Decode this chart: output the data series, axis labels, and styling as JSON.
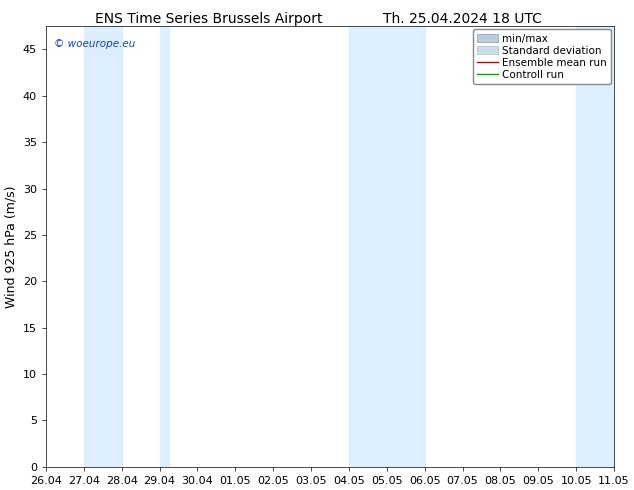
{
  "title_left": "ENS Time Series Brussels Airport",
  "title_right": "Th. 25.04.2024 18 UTC",
  "ylabel": "Wind 925 hPa (m/s)",
  "ylim": [
    0,
    47.5
  ],
  "yticks": [
    0,
    5,
    10,
    15,
    20,
    25,
    30,
    35,
    40,
    45
  ],
  "xlim_start": 0,
  "xlim_end": 30,
  "xtick_labels": [
    "26.04",
    "27.04",
    "28.04",
    "29.04",
    "30.04",
    "01.05",
    "02.05",
    "03.05",
    "04.05",
    "05.05",
    "06.05",
    "07.05",
    "08.05",
    "09.05",
    "10.05",
    "11.05"
  ],
  "xtick_positions": [
    0,
    2,
    4,
    6,
    8,
    10,
    12,
    14,
    16,
    18,
    20,
    22,
    24,
    26,
    28,
    30
  ],
  "shaded_bands": [
    [
      2,
      4
    ],
    [
      6,
      6.5
    ],
    [
      16,
      20
    ],
    [
      28,
      30
    ]
  ],
  "shade_color": "#ddeeff",
  "background_color": "#ffffff",
  "watermark": "© woeurope.eu",
  "watermark_color": "#1144cc",
  "legend_items": [
    {
      "label": "min/max",
      "color": "#b8cfe0",
      "type": "errorbar"
    },
    {
      "label": "Standard deviation",
      "color": "#d0dde8",
      "type": "band"
    },
    {
      "label": "Ensemble mean run",
      "color": "#cc0000",
      "type": "line"
    },
    {
      "label": "Controll run",
      "color": "#00aa00",
      "type": "line"
    }
  ],
  "title_fontsize": 10,
  "ylabel_fontsize": 9,
  "tick_fontsize": 8,
  "legend_fontsize": 7.5
}
